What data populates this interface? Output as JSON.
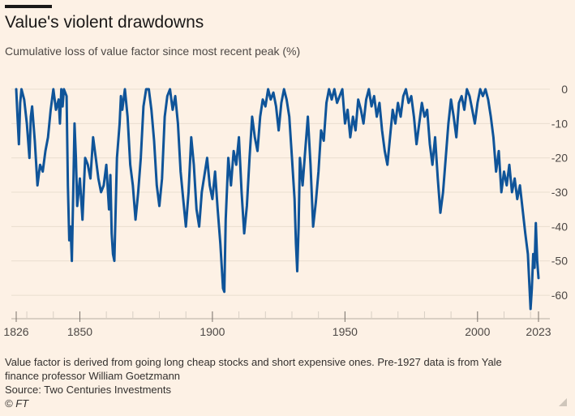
{
  "title": "Value's violent drawdowns",
  "subtitle": "Cumulative loss of value factor since most recent peak (%)",
  "footer": {
    "note_line1": "Value factor is derived from going long cheap stocks and short expensive ones. Pre-1927 data is from Yale",
    "note_line2": "finance professor William Goetzmann",
    "source": "Source: Two Centuries Investments",
    "copyright": "© FT"
  },
  "colors": {
    "background": "#fdf1e5",
    "line": "#0f5499",
    "grid": "#e9decf",
    "text": "#4d4845"
  },
  "chart_data": {
    "type": "line",
    "title": "Value's violent drawdowns",
    "subtitle": "Cumulative loss of value factor since most recent peak (%)",
    "xlim": [
      1826,
      2023
    ],
    "ylim": [
      -64,
      0
    ],
    "x_tick_labels": [
      "1826",
      "1850",
      "1900",
      "1950",
      "2000",
      "2023"
    ],
    "x_ticks": [
      1826,
      1850,
      1900,
      1950,
      2000,
      2023
    ],
    "y_ticks": [
      0,
      -10,
      -20,
      -30,
      -40,
      -50,
      -60
    ],
    "y_tick_labels": [
      "0",
      "-10",
      "-20",
      "-30",
      "-40",
      "-50",
      "-60"
    ],
    "y_axis_side": "right",
    "grid": "horizontal",
    "series": [
      {
        "points": [
          [
            1826.0,
            0
          ],
          [
            1826.5,
            -8
          ],
          [
            1827.0,
            -16
          ],
          [
            1827.5,
            -4
          ],
          [
            1828.0,
            0
          ],
          [
            1829.0,
            -3
          ],
          [
            1830.0,
            -10
          ],
          [
            1831.0,
            -20
          ],
          [
            1831.5,
            -8
          ],
          [
            1832.0,
            -5
          ],
          [
            1833.0,
            -15
          ],
          [
            1834.0,
            -28
          ],
          [
            1835.0,
            -22
          ],
          [
            1836.0,
            -24
          ],
          [
            1837.0,
            -18
          ],
          [
            1838.0,
            -14
          ],
          [
            1839.0,
            -6
          ],
          [
            1840.0,
            0
          ],
          [
            1841.0,
            -6
          ],
          [
            1842.0,
            -3
          ],
          [
            1842.5,
            -10
          ],
          [
            1843.0,
            0
          ],
          [
            1843.5,
            -5
          ],
          [
            1844.0,
            0
          ],
          [
            1845.0,
            -2
          ],
          [
            1845.5,
            -28
          ],
          [
            1846.0,
            -44
          ],
          [
            1846.5,
            -40
          ],
          [
            1847.0,
            -50
          ],
          [
            1847.5,
            -30
          ],
          [
            1848.0,
            -10
          ],
          [
            1848.5,
            -20
          ],
          [
            1849.0,
            -34
          ],
          [
            1850.0,
            -26
          ],
          [
            1851.0,
            -38
          ],
          [
            1852.0,
            -20
          ],
          [
            1853.0,
            -22
          ],
          [
            1854.0,
            -26
          ],
          [
            1855.0,
            -14
          ],
          [
            1856.0,
            -20
          ],
          [
            1857.0,
            -26
          ],
          [
            1858.0,
            -30
          ],
          [
            1859.0,
            -28
          ],
          [
            1860.0,
            -22
          ],
          [
            1861.0,
            -35
          ],
          [
            1861.5,
            -25
          ],
          [
            1862.0,
            -42
          ],
          [
            1862.5,
            -48
          ],
          [
            1863.0,
            -50
          ],
          [
            1863.5,
            -35
          ],
          [
            1864.0,
            -20
          ],
          [
            1865.0,
            -10
          ],
          [
            1865.5,
            -2
          ],
          [
            1866.0,
            -6
          ],
          [
            1867.0,
            0
          ],
          [
            1868.0,
            -8
          ],
          [
            1869.0,
            -22
          ],
          [
            1870.0,
            -28
          ],
          [
            1871.0,
            -38
          ],
          [
            1872.0,
            -30
          ],
          [
            1873.0,
            -20
          ],
          [
            1874.0,
            -5
          ],
          [
            1875.0,
            0
          ],
          [
            1876.0,
            0
          ],
          [
            1877.0,
            -6
          ],
          [
            1878.0,
            -15
          ],
          [
            1879.0,
            -28
          ],
          [
            1880.0,
            -34
          ],
          [
            1881.0,
            -26
          ],
          [
            1882.0,
            -8
          ],
          [
            1883.0,
            -2
          ],
          [
            1884.0,
            0
          ],
          [
            1885.0,
            -6
          ],
          [
            1886.0,
            -2
          ],
          [
            1887.0,
            -10
          ],
          [
            1888.0,
            -24
          ],
          [
            1889.0,
            -32
          ],
          [
            1890.0,
            -40
          ],
          [
            1891.0,
            -30
          ],
          [
            1892.0,
            -14
          ],
          [
            1893.0,
            -22
          ],
          [
            1894.0,
            -35
          ],
          [
            1895.0,
            -40
          ],
          [
            1896.0,
            -30
          ],
          [
            1897.0,
            -25
          ],
          [
            1898.0,
            -20
          ],
          [
            1899.0,
            -28
          ],
          [
            1900.0,
            -32
          ],
          [
            1901.0,
            -24
          ],
          [
            1902.0,
            -35
          ],
          [
            1903.0,
            -45
          ],
          [
            1904.0,
            -58
          ],
          [
            1904.5,
            -59
          ],
          [
            1905.0,
            -38
          ],
          [
            1906.0,
            -20
          ],
          [
            1907.0,
            -28
          ],
          [
            1908.0,
            -18
          ],
          [
            1909.0,
            -22
          ],
          [
            1910.0,
            -14
          ],
          [
            1911.0,
            -30
          ],
          [
            1912.0,
            -42
          ],
          [
            1913.0,
            -34
          ],
          [
            1914.0,
            -20
          ],
          [
            1915.0,
            -8
          ],
          [
            1916.0,
            -14
          ],
          [
            1917.0,
            -18
          ],
          [
            1918.0,
            -8
          ],
          [
            1919.0,
            -3
          ],
          [
            1920.0,
            -5
          ],
          [
            1921.0,
            0
          ],
          [
            1922.0,
            -3
          ],
          [
            1923.0,
            -1
          ],
          [
            1924.0,
            -5
          ],
          [
            1925.0,
            -12
          ],
          [
            1926.0,
            -4
          ],
          [
            1927.0,
            0
          ],
          [
            1928.0,
            -3
          ],
          [
            1929.0,
            -8
          ],
          [
            1930.0,
            -20
          ],
          [
            1931.0,
            -32
          ],
          [
            1931.5,
            -45
          ],
          [
            1932.0,
            -53
          ],
          [
            1932.5,
            -40
          ],
          [
            1933.0,
            -20
          ],
          [
            1934.0,
            -28
          ],
          [
            1935.0,
            -18
          ],
          [
            1936.0,
            -8
          ],
          [
            1937.0,
            -22
          ],
          [
            1938.0,
            -40
          ],
          [
            1939.0,
            -33
          ],
          [
            1940.0,
            -24
          ],
          [
            1941.0,
            -12
          ],
          [
            1942.0,
            -15
          ],
          [
            1943.0,
            -4
          ],
          [
            1944.0,
            0
          ],
          [
            1945.0,
            -3
          ],
          [
            1946.0,
            0
          ],
          [
            1947.0,
            -4
          ],
          [
            1948.0,
            -2
          ],
          [
            1949.0,
            0
          ],
          [
            1950.0,
            -10
          ],
          [
            1951.0,
            -6
          ],
          [
            1952.0,
            -14
          ],
          [
            1953.0,
            -8
          ],
          [
            1954.0,
            -12
          ],
          [
            1955.0,
            -3
          ],
          [
            1956.0,
            -6
          ],
          [
            1957.0,
            -10
          ],
          [
            1958.0,
            -3
          ],
          [
            1959.0,
            0
          ],
          [
            1960.0,
            -5
          ],
          [
            1961.0,
            -2
          ],
          [
            1962.0,
            -8
          ],
          [
            1963.0,
            -4
          ],
          [
            1964.0,
            -12
          ],
          [
            1965.0,
            -18
          ],
          [
            1966.0,
            -22
          ],
          [
            1967.0,
            -14
          ],
          [
            1968.0,
            -6
          ],
          [
            1969.0,
            -10
          ],
          [
            1970.0,
            -4
          ],
          [
            1971.0,
            -8
          ],
          [
            1972.0,
            -2
          ],
          [
            1973.0,
            0
          ],
          [
            1974.0,
            -4
          ],
          [
            1975.0,
            -2
          ],
          [
            1976.0,
            -8
          ],
          [
            1977.0,
            -16
          ],
          [
            1978.0,
            -10
          ],
          [
            1979.0,
            -4
          ],
          [
            1980.0,
            -8
          ],
          [
            1981.0,
            -6
          ],
          [
            1982.0,
            -16
          ],
          [
            1983.0,
            -22
          ],
          [
            1984.0,
            -14
          ],
          [
            1985.0,
            -26
          ],
          [
            1986.0,
            -36
          ],
          [
            1987.0,
            -30
          ],
          [
            1988.0,
            -20
          ],
          [
            1989.0,
            -10
          ],
          [
            1990.0,
            -3
          ],
          [
            1991.0,
            -8
          ],
          [
            1992.0,
            -14
          ],
          [
            1993.0,
            -4
          ],
          [
            1994.0,
            -2
          ],
          [
            1995.0,
            -6
          ],
          [
            1996.0,
            0
          ],
          [
            1997.0,
            -2
          ],
          [
            1998.0,
            -6
          ],
          [
            1999.0,
            -10
          ],
          [
            2000.0,
            -4
          ],
          [
            2001.0,
            0
          ],
          [
            2002.0,
            -2
          ],
          [
            2003.0,
            0
          ],
          [
            2004.0,
            -3
          ],
          [
            2005.0,
            -8
          ],
          [
            2006.0,
            -14
          ],
          [
            2007.0,
            -24
          ],
          [
            2008.0,
            -18
          ],
          [
            2009.0,
            -30
          ],
          [
            2010.0,
            -24
          ],
          [
            2011.0,
            -28
          ],
          [
            2012.0,
            -22
          ],
          [
            2013.0,
            -30
          ],
          [
            2014.0,
            -26
          ],
          [
            2015.0,
            -32
          ],
          [
            2016.0,
            -28
          ],
          [
            2017.0,
            -35
          ],
          [
            2018.0,
            -42
          ],
          [
            2019.0,
            -48
          ],
          [
            2020.0,
            -64
          ],
          [
            2020.5,
            -58
          ],
          [
            2021.0,
            -48
          ],
          [
            2021.5,
            -52
          ],
          [
            2022.0,
            -39
          ],
          [
            2022.5,
            -50
          ],
          [
            2023.0,
            -55
          ]
        ]
      }
    ]
  }
}
